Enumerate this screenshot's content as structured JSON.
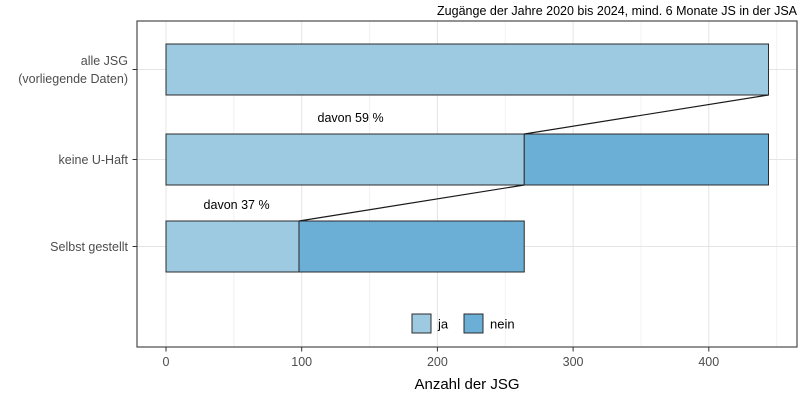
{
  "chart_data": {
    "type": "bar",
    "orientation": "horizontal",
    "stacked": true,
    "title": "Zugänge der Jahre 2020 bis 2024, mind. 6 Monate JS in der JSA",
    "xlabel": "Anzahl der JSG",
    "ylabel": "",
    "categories": [
      "alle JSG\n(vorliegende Daten)",
      "keine U-Haft",
      "Selbst gestellt"
    ],
    "series": [
      {
        "name": "ja",
        "color": "#9ecae1",
        "values": [
          444,
          264,
          98
        ]
      },
      {
        "name": "nein",
        "color": "#6baed6",
        "values": [
          0,
          180,
          166
        ]
      }
    ],
    "bar_totals": [
      444,
      444,
      264
    ],
    "x_ticks": [
      0,
      100,
      200,
      300,
      400
    ],
    "x_minor_ticks": [
      50,
      150,
      250,
      350,
      450
    ],
    "xlim": [
      0,
      465
    ],
    "grid": true,
    "legend_position": "bottom-center-inside",
    "annotations": [
      {
        "text": "davon 59 %",
        "x": 136,
        "row": 1
      },
      {
        "text": "davon 37 %",
        "x": 52,
        "row": 2
      }
    ],
    "connectors": [
      {
        "from_row": 0,
        "from_x": 444,
        "to_row": 1,
        "to_x": 264
      },
      {
        "from_row": 1,
        "from_x": 264,
        "to_row": 2,
        "to_x": 98
      }
    ],
    "colors": {
      "ja": "#9ecae1",
      "nein": "#6baed6",
      "bar_stroke": "#2b2b2b",
      "panel_border": "#4a4a4a",
      "grid_major": "#e4e4e4",
      "grid_minor": "#f2f2f2",
      "tick_mark": "#333333"
    }
  }
}
